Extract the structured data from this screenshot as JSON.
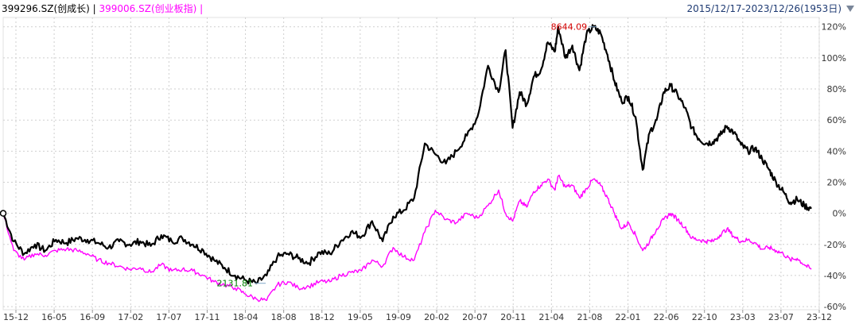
{
  "header": {
    "series1_label": "399296.SZ(创成长)",
    "separator": " | ",
    "series2_label": "399006.SZ(创业板指)",
    "trailing_sep": " |",
    "date_range": "2015/12/17-2023/12/26(1953日)",
    "dropdown_icon": "triangle-down-icon"
  },
  "colors": {
    "series1": "#000000",
    "series2": "#ff00ff",
    "grid": "#cfcfcf",
    "high_annotation": "#d40000",
    "low_annotation": "#008000",
    "range_text": "#1f3b73"
  },
  "chart_data": {
    "type": "line",
    "ylim": [
      -62,
      126
    ],
    "y_ticks": [
      120,
      100,
      80,
      60,
      40,
      20,
      0,
      -20,
      -40,
      -60
    ],
    "y_tick_labels": [
      "120%",
      "100%",
      "80%",
      "60%",
      "40%",
      "20%",
      "0%",
      "-20%",
      "-40%",
      "-60%"
    ],
    "x_tick_labels": [
      "15-12",
      "16-05",
      "16-09",
      "17-02",
      "17-07",
      "17-11",
      "18-04",
      "18-08",
      "18-12",
      "19-05",
      "19-09",
      "20-02",
      "20-07",
      "20-11",
      "21-04",
      "21-08",
      "22-01",
      "22-06",
      "22-10",
      "23-03",
      "23-07",
      "23-12"
    ],
    "grid": true,
    "series": [
      {
        "name": "399296.SZ(创成长)",
        "points": [
          [
            0,
            0
          ],
          [
            3,
            -18
          ],
          [
            6,
            -26
          ],
          [
            9,
            -20
          ],
          [
            12,
            -24
          ],
          [
            15,
            -17
          ],
          [
            18,
            -19
          ],
          [
            21,
            -16
          ],
          [
            24,
            -17
          ],
          [
            27,
            -19
          ],
          [
            30,
            -22
          ],
          [
            33,
            -18
          ],
          [
            36,
            -20
          ],
          [
            39,
            -18
          ],
          [
            42,
            -21
          ],
          [
            45,
            -14
          ],
          [
            48,
            -18
          ],
          [
            51,
            -16
          ],
          [
            54,
            -20
          ],
          [
            57,
            -24
          ],
          [
            60,
            -30
          ],
          [
            63,
            -35
          ],
          [
            66,
            -40
          ],
          [
            69,
            -43
          ],
          [
            72,
            -45
          ],
          [
            75,
            -40
          ],
          [
            78,
            -28
          ],
          [
            81,
            -26
          ],
          [
            84,
            -29
          ],
          [
            87,
            -32
          ],
          [
            90,
            -25
          ],
          [
            93,
            -26
          ],
          [
            96,
            -18
          ],
          [
            99,
            -12
          ],
          [
            102,
            -15
          ],
          [
            105,
            -5
          ],
          [
            108,
            -18
          ],
          [
            111,
            -2
          ],
          [
            114,
            2
          ],
          [
            117,
            10
          ],
          [
            120,
            45
          ],
          [
            123,
            38
          ],
          [
            126,
            32
          ],
          [
            129,
            40
          ],
          [
            132,
            50
          ],
          [
            135,
            62
          ],
          [
            138,
            95
          ],
          [
            141,
            78
          ],
          [
            143,
            105
          ],
          [
            145,
            55
          ],
          [
            147,
            78
          ],
          [
            149,
            70
          ],
          [
            151,
            88
          ],
          [
            153,
            92
          ],
          [
            155,
            110
          ],
          [
            157,
            104
          ],
          [
            158,
            120
          ],
          [
            160,
            100
          ],
          [
            162,
            108
          ],
          [
            164,
            92
          ],
          [
            166,
            115
          ],
          [
            168,
            120
          ],
          [
            170,
            116
          ],
          [
            172,
            102
          ],
          [
            174,
            85
          ],
          [
            176,
            72
          ],
          [
            178,
            75
          ],
          [
            180,
            62
          ],
          [
            182,
            28
          ],
          [
            184,
            52
          ],
          [
            186,
            60
          ],
          [
            188,
            78
          ],
          [
            190,
            82
          ],
          [
            192,
            76
          ],
          [
            194,
            68
          ],
          [
            196,
            55
          ],
          [
            198,
            48
          ],
          [
            200,
            45
          ],
          [
            202,
            46
          ],
          [
            204,
            50
          ],
          [
            206,
            56
          ],
          [
            208,
            52
          ],
          [
            210,
            44
          ],
          [
            212,
            40
          ],
          [
            214,
            42
          ],
          [
            216,
            35
          ],
          [
            218,
            28
          ],
          [
            220,
            20
          ],
          [
            222,
            14
          ],
          [
            224,
            7
          ],
          [
            226,
            9
          ],
          [
            228,
            5
          ],
          [
            230,
            3
          ]
        ]
      },
      {
        "name": "399006.SZ(创业板指)",
        "points": [
          [
            0,
            0
          ],
          [
            3,
            -24
          ],
          [
            6,
            -30
          ],
          [
            9,
            -26
          ],
          [
            12,
            -27
          ],
          [
            15,
            -24
          ],
          [
            18,
            -23
          ],
          [
            21,
            -24
          ],
          [
            24,
            -26
          ],
          [
            27,
            -30
          ],
          [
            30,
            -32
          ],
          [
            33,
            -34
          ],
          [
            36,
            -36
          ],
          [
            39,
            -35
          ],
          [
            42,
            -38
          ],
          [
            45,
            -33
          ],
          [
            48,
            -37
          ],
          [
            51,
            -36
          ],
          [
            54,
            -37
          ],
          [
            57,
            -40
          ],
          [
            60,
            -44
          ],
          [
            63,
            -46
          ],
          [
            66,
            -48
          ],
          [
            69,
            -52
          ],
          [
            72,
            -55
          ],
          [
            75,
            -56
          ],
          [
            78,
            -46
          ],
          [
            81,
            -44
          ],
          [
            84,
            -48
          ],
          [
            87,
            -47
          ],
          [
            90,
            -44
          ],
          [
            93,
            -44
          ],
          [
            96,
            -40
          ],
          [
            99,
            -38
          ],
          [
            102,
            -37
          ],
          [
            105,
            -30
          ],
          [
            108,
            -34
          ],
          [
            111,
            -22
          ],
          [
            114,
            -28
          ],
          [
            117,
            -30
          ],
          [
            120,
            -12
          ],
          [
            123,
            2
          ],
          [
            126,
            -4
          ],
          [
            129,
            -6
          ],
          [
            132,
            0
          ],
          [
            135,
            -3
          ],
          [
            138,
            5
          ],
          [
            141,
            15
          ],
          [
            143,
            0
          ],
          [
            145,
            -5
          ],
          [
            147,
            8
          ],
          [
            149,
            4
          ],
          [
            151,
            14
          ],
          [
            153,
            18
          ],
          [
            155,
            22
          ],
          [
            157,
            15
          ],
          [
            158,
            24
          ],
          [
            160,
            17
          ],
          [
            162,
            18
          ],
          [
            164,
            10
          ],
          [
            166,
            16
          ],
          [
            168,
            22
          ],
          [
            170,
            18
          ],
          [
            172,
            10
          ],
          [
            174,
            0
          ],
          [
            176,
            -10
          ],
          [
            178,
            -6
          ],
          [
            180,
            -14
          ],
          [
            182,
            -24
          ],
          [
            184,
            -18
          ],
          [
            186,
            -10
          ],
          [
            188,
            -4
          ],
          [
            190,
            0
          ],
          [
            192,
            -4
          ],
          [
            194,
            -9
          ],
          [
            196,
            -16
          ],
          [
            198,
            -17
          ],
          [
            200,
            -18
          ],
          [
            202,
            -18
          ],
          [
            204,
            -14
          ],
          [
            206,
            -10
          ],
          [
            208,
            -15
          ],
          [
            210,
            -18
          ],
          [
            212,
            -17
          ],
          [
            214,
            -19
          ],
          [
            216,
            -23
          ],
          [
            218,
            -22
          ],
          [
            220,
            -24
          ],
          [
            222,
            -26
          ],
          [
            224,
            -30
          ],
          [
            226,
            -29
          ],
          [
            228,
            -33
          ],
          [
            230,
            -36
          ]
        ]
      }
    ],
    "annotations": [
      {
        "label": "8644.09",
        "series": "399296.SZ(创成长)",
        "at_index": 168
      },
      {
        "label": "2131.81",
        "series": "399296.SZ(创成长)",
        "at_index": 72
      }
    ]
  }
}
